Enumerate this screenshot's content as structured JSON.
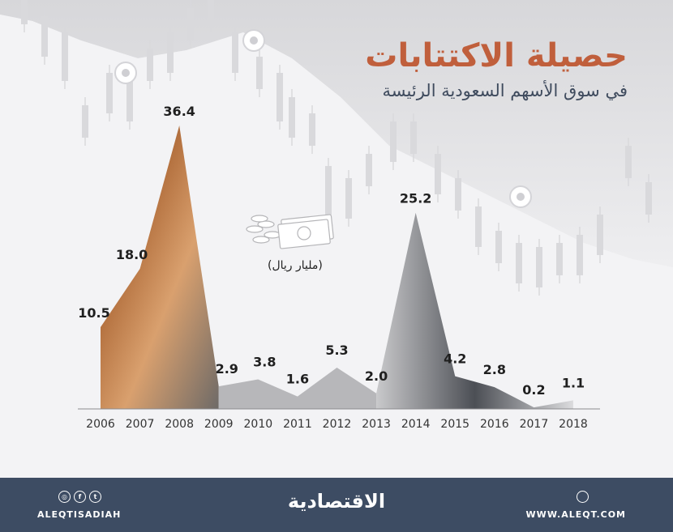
{
  "header": {
    "title": "حصيلة الاكتتابات",
    "subtitle": "في سوق الأسهم السعودية الرئيسة"
  },
  "unit_label": "(مليار ريال)",
  "colors": {
    "title": "#c05f3c",
    "subtitle": "#3f4b5e",
    "footer": "#3d4c63",
    "fill_dark": "#6d6a67",
    "fill_warm": "#c58b5a"
  },
  "chart_data": {
    "type": "area",
    "x": [
      "2006",
      "2007",
      "2008",
      "2009",
      "2010",
      "2011",
      "2012",
      "2013",
      "2014",
      "2015",
      "2016",
      "2017",
      "2018"
    ],
    "values": [
      10.5,
      18.0,
      36.4,
      2.9,
      3.8,
      1.6,
      5.3,
      2.0,
      25.2,
      4.2,
      2.8,
      0.2,
      1.1
    ],
    "data_labels": [
      "10.5",
      "18.0",
      "36.4",
      "2.9",
      "3.8",
      "1.6",
      "5.3",
      "2.0",
      "25.2",
      "4.2",
      "2.8",
      "0.2",
      "1.1"
    ],
    "unit": "(مليار ريال)",
    "ylim": [
      0,
      40
    ],
    "grid": false
  },
  "footer": {
    "brand": "الاقتصادية",
    "social_handle": "ALEQTISADIAH",
    "website": "WWW.ALEQT.COM",
    "social_icons": [
      "instagram-icon",
      "facebook-icon",
      "twitter-icon"
    ]
  }
}
